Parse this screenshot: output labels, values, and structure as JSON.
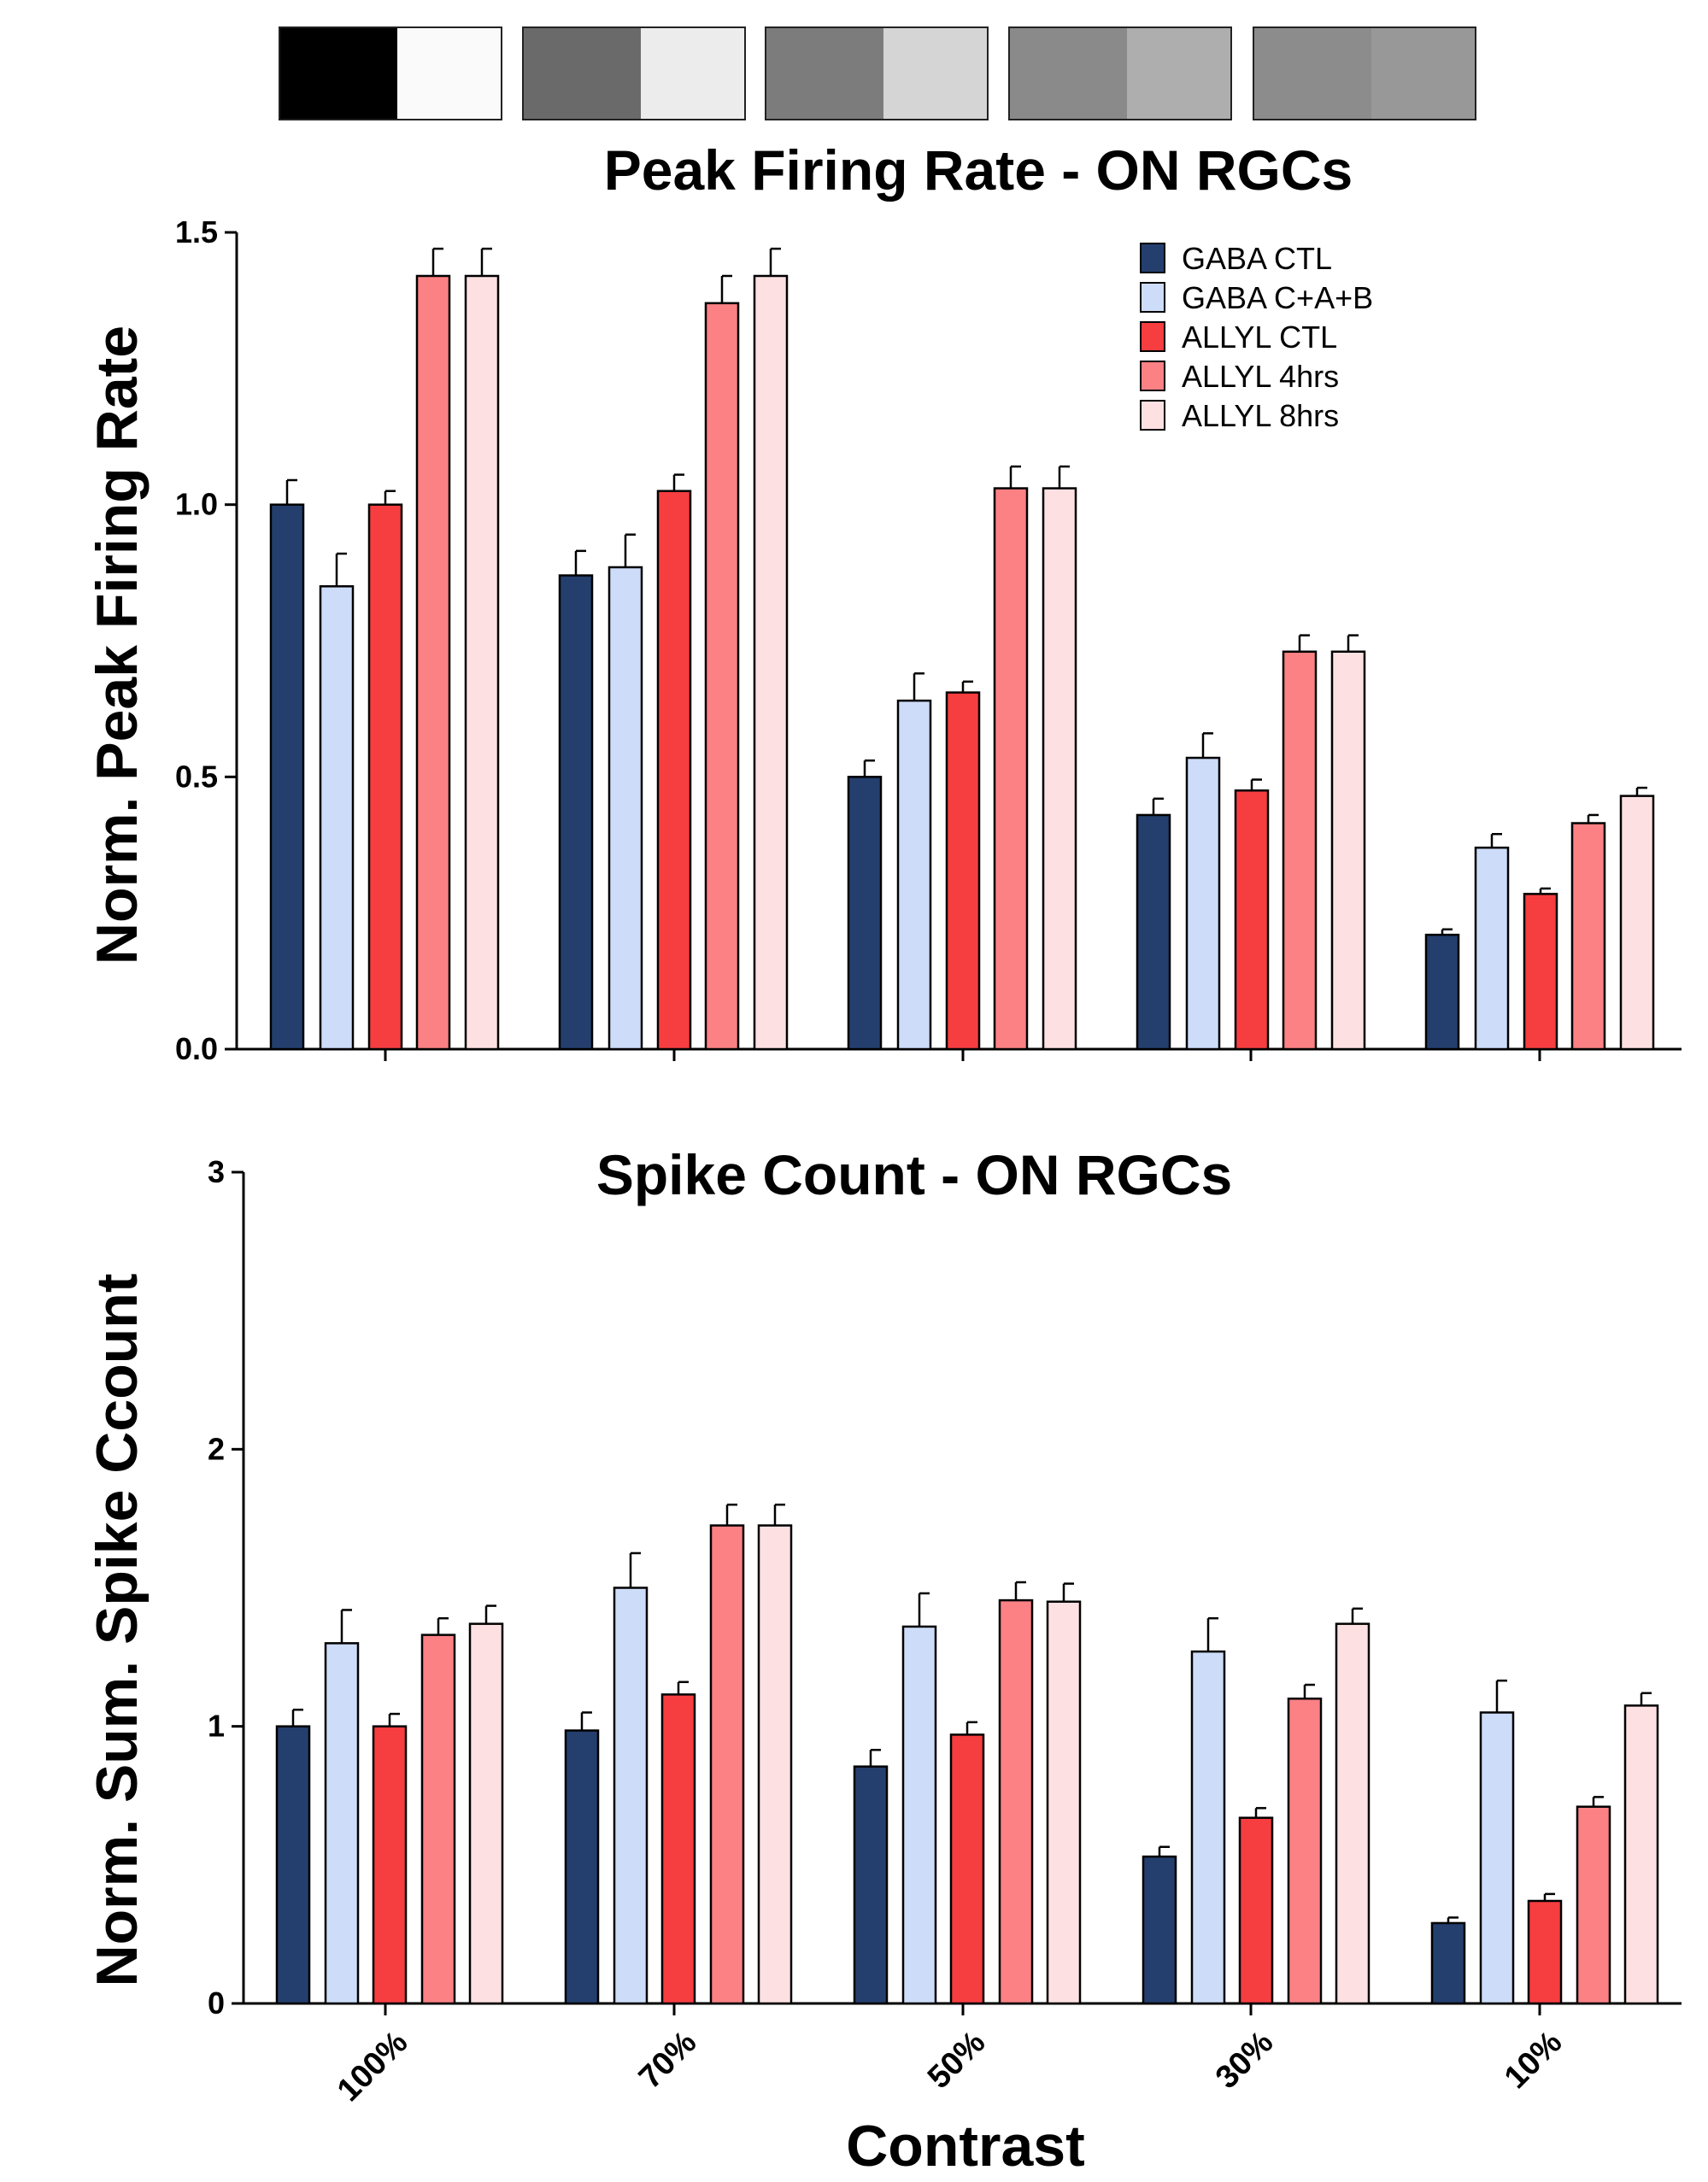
{
  "colors": {
    "GABA CTL": "#243f6e",
    "GABA C+A+B": "#cddcf8",
    "ALLYL CTL": "#f63d40",
    "ALLYL 4hrs": "#fb8184",
    "ALLYL 8hrs": "#fde0e2"
  },
  "contrast_strip": [
    [
      "#000000",
      "#fafafa"
    ],
    [
      "#6a6a6a",
      "#ececec"
    ],
    [
      "#7c7c7c",
      "#d5d5d5"
    ],
    [
      "#8a8a8a",
      "#aeaeae"
    ],
    [
      "#8c8c8c",
      "#989898"
    ]
  ],
  "xlabel": "Contrast",
  "chart_data": [
    {
      "type": "bar",
      "title": "Peak Firing Rate - ON RGCs",
      "ylabel": "Norm. Peak Firing Rate",
      "xlabel": "Contrast",
      "categories": [
        "100%",
        "70%",
        "50%",
        "30%",
        "10%"
      ],
      "ylim": [
        0,
        1.5
      ],
      "yticks": [
        "0.0",
        "0.5",
        "1.0",
        "1.5"
      ],
      "ytick_values": [
        0,
        0.5,
        1.0,
        1.5
      ],
      "legend": "top-right",
      "grid": false,
      "series": [
        {
          "name": "GABA CTL",
          "values": [
            1.0,
            0.87,
            0.5,
            0.43,
            0.21
          ],
          "errors": [
            0.045,
            0.045,
            0.03,
            0.03,
            0.01
          ]
        },
        {
          "name": "GABA C+A+B",
          "values": [
            0.85,
            0.885,
            0.64,
            0.535,
            0.37
          ],
          "errors": [
            0.06,
            0.06,
            0.05,
            0.045,
            0.025
          ]
        },
        {
          "name": "ALLYL CTL",
          "values": [
            1.0,
            1.025,
            0.655,
            0.475,
            0.285
          ],
          "errors": [
            0.025,
            0.03,
            0.02,
            0.02,
            0.01
          ]
        },
        {
          "name": "ALLYL 4hrs",
          "values": [
            1.42,
            1.37,
            1.03,
            0.73,
            0.415
          ],
          "errors": [
            0.05,
            0.05,
            0.04,
            0.03,
            0.015
          ]
        },
        {
          "name": "ALLYL 8hrs",
          "values": [
            1.42,
            1.42,
            1.03,
            0.73,
            0.465
          ],
          "errors": [
            0.05,
            0.05,
            0.04,
            0.03,
            0.015
          ]
        }
      ]
    },
    {
      "type": "bar",
      "title": "Spike Count - ON RGCs",
      "ylabel": "Norm. Sum. Spike Ccount",
      "xlabel": "Contrast",
      "categories": [
        "100%",
        "70%",
        "50%",
        "30%",
        "10%"
      ],
      "ylim": [
        0,
        3
      ],
      "yticks": [
        "0",
        "1",
        "2",
        "3"
      ],
      "ytick_values": [
        0,
        1,
        2,
        3
      ],
      "grid": false,
      "series": [
        {
          "name": "GABA CTL",
          "values": [
            1.0,
            0.985,
            0.855,
            0.53,
            0.29
          ],
          "errors": [
            0.06,
            0.065,
            0.06,
            0.035,
            0.02
          ]
        },
        {
          "name": "GABA C+A+B",
          "values": [
            1.3,
            1.5,
            1.36,
            1.27,
            1.05
          ],
          "errors": [
            0.12,
            0.125,
            0.12,
            0.12,
            0.115
          ]
        },
        {
          "name": "ALLYL CTL",
          "values": [
            1.0,
            1.115,
            0.97,
            0.67,
            0.37
          ],
          "errors": [
            0.045,
            0.045,
            0.045,
            0.035,
            0.025
          ]
        },
        {
          "name": "ALLYL 4hrs",
          "values": [
            1.33,
            1.725,
            1.455,
            1.1,
            0.71
          ],
          "errors": [
            0.06,
            0.075,
            0.065,
            0.05,
            0.035
          ]
        },
        {
          "name": "ALLYL 8hrs",
          "values": [
            1.37,
            1.725,
            1.45,
            1.37,
            1.075
          ],
          "errors": [
            0.065,
            0.075,
            0.065,
            0.055,
            0.045
          ]
        }
      ]
    }
  ]
}
